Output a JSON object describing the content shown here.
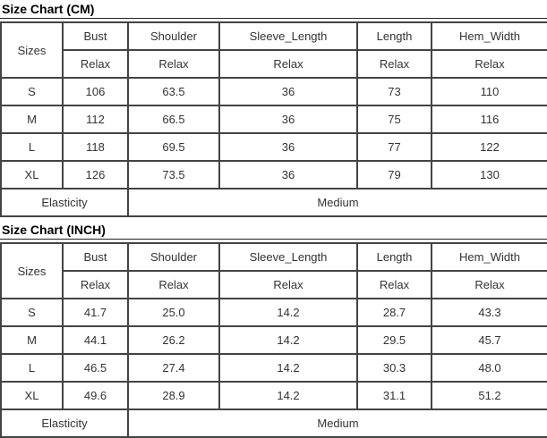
{
  "colors": {
    "table_border": "#434343",
    "title_underline": "#222222",
    "text": "#333333",
    "title_text": "#000000",
    "background": "#ffffff"
  },
  "chart_data": [
    {
      "type": "table",
      "title": "Size Chart (CM)",
      "corner_header": "Sizes",
      "measure_columns": [
        "Bust",
        "Shoulder",
        "Sleeve_Length",
        "Length",
        "Hem_Width"
      ],
      "fit_row": [
        "Relax",
        "Relax",
        "Relax",
        "Relax",
        "Relax"
      ],
      "rows": [
        {
          "size": "S",
          "values": [
            "106",
            "63.5",
            "36",
            "73",
            "110"
          ]
        },
        {
          "size": "M",
          "values": [
            "112",
            "66.5",
            "36",
            "75",
            "116"
          ]
        },
        {
          "size": "L",
          "values": [
            "118",
            "69.5",
            "36",
            "77",
            "122"
          ]
        },
        {
          "size": "XL",
          "values": [
            "126",
            "73.5",
            "36",
            "79",
            "130"
          ]
        }
      ],
      "footer_label": "Elasticity",
      "footer_value": "Medium"
    },
    {
      "type": "table",
      "title": "Size Chart (INCH)",
      "corner_header": "Sizes",
      "measure_columns": [
        "Bust",
        "Shoulder",
        "Sleeve_Length",
        "Length",
        "Hem_Width"
      ],
      "fit_row": [
        "Relax",
        "Relax",
        "Relax",
        "Relax",
        "Relax"
      ],
      "rows": [
        {
          "size": "S",
          "values": [
            "41.7",
            "25.0",
            "14.2",
            "28.7",
            "43.3"
          ]
        },
        {
          "size": "M",
          "values": [
            "44.1",
            "26.2",
            "14.2",
            "29.5",
            "45.7"
          ]
        },
        {
          "size": "L",
          "values": [
            "46.5",
            "27.4",
            "14.2",
            "30.3",
            "48.0"
          ]
        },
        {
          "size": "XL",
          "values": [
            "49.6",
            "28.9",
            "14.2",
            "31.1",
            "51.2"
          ]
        }
      ],
      "footer_label": "Elasticity",
      "footer_value": "Medium"
    }
  ]
}
